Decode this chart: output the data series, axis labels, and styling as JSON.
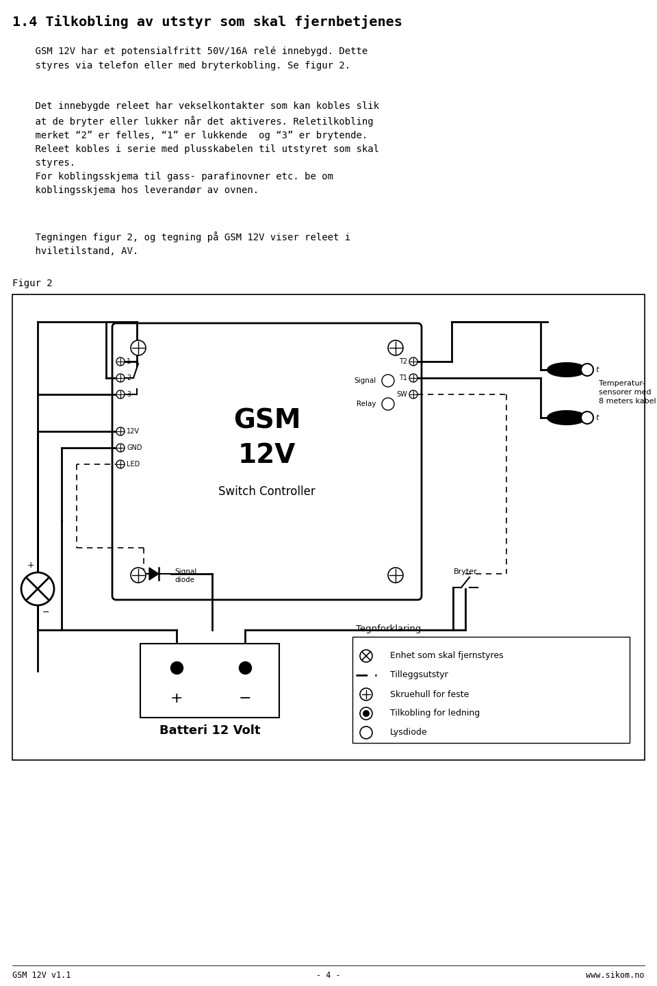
{
  "title": "1.4 Tilkobling av utstyr som skal fjernbetjenes",
  "para1": "    GSM 12V har et potensialfritt 50V/16A relé innebygd. Dette\n    styres via telefon eller med bryterkobling. Se figur 2.",
  "para2": "    Det innebygde releet har vekselkontakter som kan kobles slik\n    at de bryter eller lukker når det aktiveres. Reletilkobling\n    merket “2” er felles, “1” er lukkende  og “3” er brytende.\n    Releet kobles i serie med plusskabelen til utstyret som skal\n    styres.\n    For koblingsskjema til gass- parafinovner etc. be om\n    koblingsskjema hos leverandør av ovnen.",
  "para3": "    Tegningen figur 2, og tegning på GSM 12V viser releet i\n    hviletilstand, AV.",
  "figur_label": "Figur 2",
  "footer_left": "GSM 12V v1.1",
  "footer_center": "- 4 -",
  "footer_right": "www.sikom.no",
  "bg_color": "#ffffff",
  "text_color": "#000000"
}
